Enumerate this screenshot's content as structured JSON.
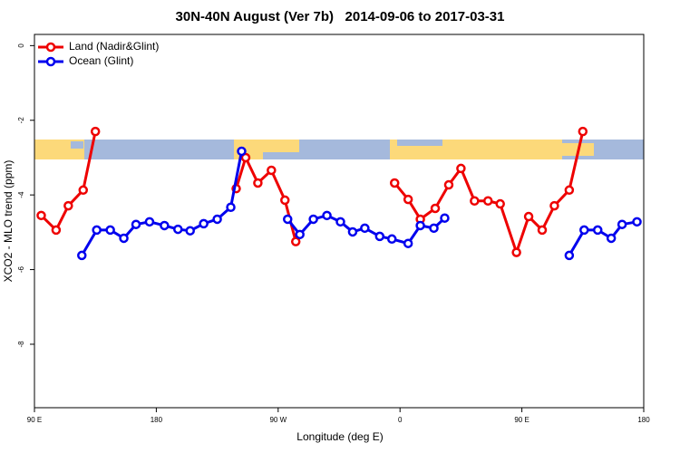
{
  "chart_data": {
    "type": "line",
    "title": "30N-40N August (Ver 7b)   2014-09-06 to 2017-03-31",
    "x_label": "Longitude (deg E)",
    "y_label": "XCO2 - MLO trend (ppm)",
    "xlim": [
      90,
      540
    ],
    "ylim": [
      0.3,
      -9.7
    ],
    "xticks": [
      {
        "value": 90,
        "label": "90 E"
      },
      {
        "value": 180,
        "label": "180"
      },
      {
        "value": 270,
        "label": "90 W"
      },
      {
        "value": 360,
        "label": "0"
      },
      {
        "value": 450,
        "label": "90 E"
      },
      {
        "value": 540,
        "label": "180"
      }
    ],
    "yticks": [
      0,
      -2,
      -4,
      -6,
      -8
    ],
    "legend": "top-left",
    "series": [
      {
        "name": "Land (Nadir&Glint)",
        "color": "#ee0000",
        "x": [
          95,
          106,
          115,
          126,
          135,
          null,
          239,
          246,
          255,
          265,
          275,
          283,
          null,
          356,
          366,
          375,
          386,
          396,
          405,
          415,
          425,
          434,
          446,
          455,
          465,
          474,
          485,
          495
        ],
        "values": [
          -4.55,
          -4.94,
          -4.29,
          -3.87,
          -2.3,
          null,
          -3.83,
          -3.0,
          -3.68,
          -3.34,
          -4.14,
          -5.25,
          null,
          -3.68,
          -4.12,
          -4.65,
          -4.36,
          -3.73,
          -3.29,
          -4.16,
          -4.16,
          -4.24,
          -5.54,
          -4.58,
          -4.94,
          -4.29,
          -3.87,
          -2.3
        ]
      },
      {
        "name": "Ocean (Glint)",
        "color": "#0000ee",
        "x": [
          125,
          136,
          146,
          156,
          165,
          175,
          186,
          196,
          205,
          215,
          225,
          235,
          243,
          null,
          277,
          286,
          296,
          306,
          316,
          325,
          334,
          345,
          354,
          366,
          375,
          385,
          393,
          null,
          485,
          496,
          506,
          516,
          524,
          535
        ],
        "values": [
          -5.62,
          -4.94,
          -4.94,
          -5.16,
          -4.79,
          -4.72,
          -4.82,
          -4.92,
          -4.96,
          -4.77,
          -4.65,
          -4.33,
          -2.83,
          null,
          -4.65,
          -5.06,
          -4.65,
          -4.55,
          -4.72,
          -4.99,
          -4.89,
          -5.11,
          -5.18,
          -5.3,
          -4.82,
          -4.89,
          -4.62,
          null,
          -5.62,
          -4.94,
          -4.94,
          -5.16,
          -4.79,
          -4.72
        ]
      }
    ]
  }
}
